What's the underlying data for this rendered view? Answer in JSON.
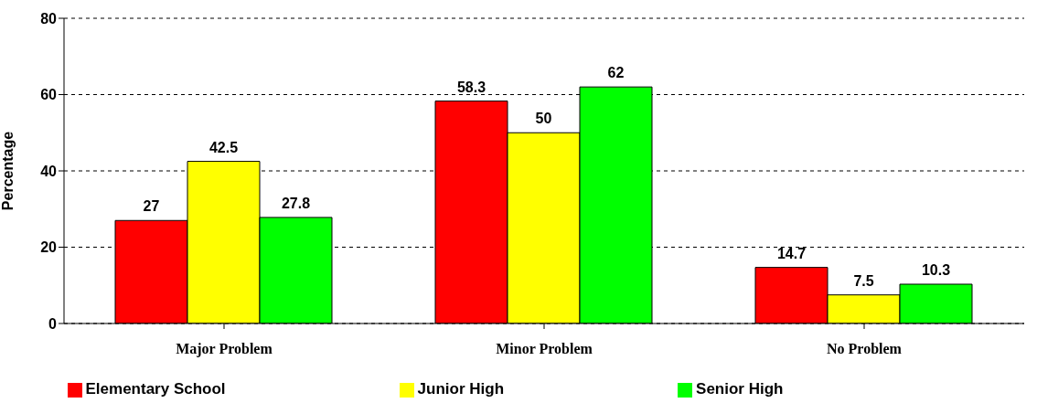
{
  "chart_data": {
    "type": "bar",
    "ylabel": "Percentage",
    "categories": [
      "Major Problem",
      "Minor Problem",
      "No Problem"
    ],
    "series": [
      {
        "name": "Elementary School",
        "color": "#ff0000",
        "values": [
          27,
          58.3,
          14.7
        ]
      },
      {
        "name": "Junior High",
        "color": "#ffff00",
        "values": [
          42.5,
          50,
          7.5
        ]
      },
      {
        "name": "Senior High",
        "color": "#00ff00",
        "values": [
          27.8,
          62,
          10.3
        ]
      }
    ],
    "ylim": [
      0,
      80
    ],
    "yticks": [
      0,
      20,
      40,
      60,
      80
    ],
    "grid": "y",
    "legend": "bottom",
    "data_labels": true
  }
}
